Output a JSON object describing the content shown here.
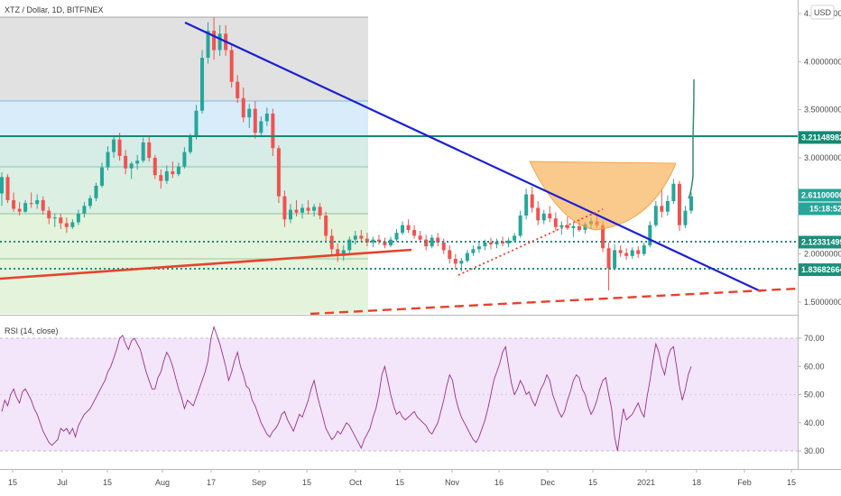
{
  "header": {
    "symbol_title": "XTZ / Dollar, 1D, BITFINEX",
    "currency_button": "USD"
  },
  "rsi_panel": {
    "title": "RSI (14, close)"
  },
  "colors": {
    "trend_blue": "#1a1fd6",
    "support_red": "#e8412c",
    "level_teal": "#138a72",
    "level_dotted": "#1c8f7a",
    "rsi_line": "#9b2f8c",
    "rsi_band": "#f3e5fb",
    "bowl_orange": "#f7a540",
    "candle_up": "#26a69a",
    "candle_down": "#ef5350",
    "fib_top": "#dcdcdc",
    "fib_blue": "#d8ecfa",
    "fib_teal": "#d9efe9",
    "fib_green": "#e4f4dc"
  },
  "chart_data": [
    {
      "type": "candlestick",
      "title": "XTZ / Dollar, 1D, BITFINEX",
      "x_ticks": [
        "15",
        "Jul",
        "15",
        "Aug",
        "17",
        "Sep",
        "15",
        "Oct",
        "15",
        "Nov",
        "16",
        "Dec",
        "15",
        "2021",
        "18",
        "Feb",
        "15"
      ],
      "y_ticks": [
        "1.50000000",
        "2.00000000",
        "2.50000000",
        "3.00000000",
        "3.50000000",
        "4.00000000",
        "4.50000000"
      ],
      "ylim": [
        1.4,
        4.55
      ],
      "price_labels": [
        {
          "value": 3.21148982,
          "text": "3.21148982",
          "color": "#138a72"
        },
        {
          "value": 2.611,
          "text": "2.61100000",
          "color": "#26a69a"
        },
        {
          "value": 2.12331499,
          "text": "2.12331499",
          "color": "#1c8f7a"
        },
        {
          "value": 1.83682664,
          "text": "1.83682664",
          "color": "#1c8f7a"
        }
      ],
      "countdown_label": "15:18:52",
      "horizontal_levels": [
        3.21148982,
        2.12331499,
        1.83682664
      ],
      "fib_levels": [
        4.44,
        3.57,
        3.21,
        2.89,
        2.39,
        2.0
      ],
      "trendlines": [
        {
          "name": "descending resistance",
          "from": [
            0.31,
            4.38
          ],
          "to": [
            9.13,
            1.6
          ]
        },
        {
          "name": "support",
          "from": [
            0,
            1.76
          ],
          "to": [
            4.6,
            2.05
          ]
        },
        {
          "name": "dashed support",
          "from": [
            3.73,
            1.39
          ],
          "to": [
            9.5,
            1.63
          ]
        }
      ],
      "projection": "curved upward projection from about 2.6 to about 3.85",
      "candles": [
        {
          "o": 2.63,
          "h": 2.85,
          "l": 2.5,
          "c": 2.8
        },
        {
          "o": 2.8,
          "h": 2.83,
          "l": 2.53,
          "c": 2.56
        },
        {
          "o": 2.56,
          "h": 2.64,
          "l": 2.44,
          "c": 2.47
        },
        {
          "o": 2.47,
          "h": 2.54,
          "l": 2.4,
          "c": 2.44
        },
        {
          "o": 2.44,
          "h": 2.56,
          "l": 2.43,
          "c": 2.53
        },
        {
          "o": 2.53,
          "h": 2.64,
          "l": 2.48,
          "c": 2.52
        },
        {
          "o": 2.52,
          "h": 2.62,
          "l": 2.47,
          "c": 2.56
        },
        {
          "o": 2.56,
          "h": 2.6,
          "l": 2.41,
          "c": 2.45
        },
        {
          "o": 2.45,
          "h": 2.49,
          "l": 2.31,
          "c": 2.37
        },
        {
          "o": 2.37,
          "h": 2.42,
          "l": 2.28,
          "c": 2.38
        },
        {
          "o": 2.38,
          "h": 2.42,
          "l": 2.26,
          "c": 2.32
        },
        {
          "o": 2.32,
          "h": 2.38,
          "l": 2.22,
          "c": 2.28
        },
        {
          "o": 2.28,
          "h": 2.36,
          "l": 2.26,
          "c": 2.33
        },
        {
          "o": 2.33,
          "h": 2.46,
          "l": 2.3,
          "c": 2.42
        },
        {
          "o": 2.42,
          "h": 2.54,
          "l": 2.38,
          "c": 2.5
        },
        {
          "o": 2.5,
          "h": 2.61,
          "l": 2.47,
          "c": 2.58
        },
        {
          "o": 2.58,
          "h": 2.74,
          "l": 2.55,
          "c": 2.71
        },
        {
          "o": 2.71,
          "h": 2.95,
          "l": 2.69,
          "c": 2.9
        },
        {
          "o": 2.9,
          "h": 3.12,
          "l": 2.87,
          "c": 3.06
        },
        {
          "o": 3.06,
          "h": 3.23,
          "l": 3.0,
          "c": 3.19
        },
        {
          "o": 3.19,
          "h": 3.26,
          "l": 2.97,
          "c": 3.02
        },
        {
          "o": 3.02,
          "h": 3.08,
          "l": 2.83,
          "c": 2.89
        },
        {
          "o": 2.89,
          "h": 2.96,
          "l": 2.78,
          "c": 2.94
        },
        {
          "o": 2.94,
          "h": 3.03,
          "l": 2.88,
          "c": 2.97
        },
        {
          "o": 2.97,
          "h": 3.21,
          "l": 2.95,
          "c": 3.16
        },
        {
          "o": 3.16,
          "h": 3.22,
          "l": 2.96,
          "c": 3.0
        },
        {
          "o": 3.0,
          "h": 3.03,
          "l": 2.78,
          "c": 2.82
        },
        {
          "o": 2.82,
          "h": 2.88,
          "l": 2.68,
          "c": 2.76
        },
        {
          "o": 2.76,
          "h": 2.92,
          "l": 2.73,
          "c": 2.86
        },
        {
          "o": 2.86,
          "h": 2.96,
          "l": 2.79,
          "c": 2.83
        },
        {
          "o": 2.83,
          "h": 2.95,
          "l": 2.81,
          "c": 2.91
        },
        {
          "o": 2.91,
          "h": 3.11,
          "l": 2.89,
          "c": 3.06
        },
        {
          "o": 3.06,
          "h": 3.25,
          "l": 3.04,
          "c": 3.22
        },
        {
          "o": 3.22,
          "h": 3.55,
          "l": 3.19,
          "c": 3.49
        },
        {
          "o": 3.49,
          "h": 4.12,
          "l": 3.46,
          "c": 4.04
        },
        {
          "o": 4.04,
          "h": 4.41,
          "l": 3.98,
          "c": 4.32
        },
        {
          "o": 4.32,
          "h": 4.46,
          "l": 4.02,
          "c": 4.12
        },
        {
          "o": 4.12,
          "h": 4.38,
          "l": 4.06,
          "c": 4.29
        },
        {
          "o": 4.29,
          "h": 4.38,
          "l": 4.06,
          "c": 4.12
        },
        {
          "o": 4.12,
          "h": 4.17,
          "l": 3.73,
          "c": 3.79
        },
        {
          "o": 3.79,
          "h": 3.86,
          "l": 3.57,
          "c": 3.62
        },
        {
          "o": 3.62,
          "h": 3.73,
          "l": 3.37,
          "c": 3.42
        },
        {
          "o": 3.42,
          "h": 3.56,
          "l": 3.31,
          "c": 3.51
        },
        {
          "o": 3.51,
          "h": 3.59,
          "l": 3.2,
          "c": 3.26
        },
        {
          "o": 3.26,
          "h": 3.43,
          "l": 3.23,
          "c": 3.38
        },
        {
          "o": 3.38,
          "h": 3.52,
          "l": 3.33,
          "c": 3.46
        },
        {
          "o": 3.46,
          "h": 3.51,
          "l": 3.02,
          "c": 3.1
        },
        {
          "o": 3.1,
          "h": 3.13,
          "l": 2.53,
          "c": 2.6
        },
        {
          "o": 2.6,
          "h": 2.66,
          "l": 2.28,
          "c": 2.36
        },
        {
          "o": 2.36,
          "h": 2.52,
          "l": 2.32,
          "c": 2.46
        },
        {
          "o": 2.46,
          "h": 2.56,
          "l": 2.39,
          "c": 2.43
        },
        {
          "o": 2.43,
          "h": 2.52,
          "l": 2.37,
          "c": 2.48
        },
        {
          "o": 2.48,
          "h": 2.56,
          "l": 2.41,
          "c": 2.45
        },
        {
          "o": 2.45,
          "h": 2.52,
          "l": 2.39,
          "c": 2.49
        },
        {
          "o": 2.49,
          "h": 2.53,
          "l": 2.36,
          "c": 2.4
        },
        {
          "o": 2.4,
          "h": 2.44,
          "l": 2.13,
          "c": 2.19
        },
        {
          "o": 2.19,
          "h": 2.26,
          "l": 1.98,
          "c": 2.05
        },
        {
          "o": 2.05,
          "h": 2.11,
          "l": 1.92,
          "c": 1.98
        },
        {
          "o": 1.98,
          "h": 2.09,
          "l": 1.93,
          "c": 2.04
        },
        {
          "o": 2.04,
          "h": 2.18,
          "l": 2.01,
          "c": 2.15
        },
        {
          "o": 2.15,
          "h": 2.24,
          "l": 2.1,
          "c": 2.19
        },
        {
          "o": 2.19,
          "h": 2.25,
          "l": 2.12,
          "c": 2.16
        },
        {
          "o": 2.16,
          "h": 2.22,
          "l": 2.08,
          "c": 2.12
        },
        {
          "o": 2.12,
          "h": 2.18,
          "l": 2.07,
          "c": 2.15
        },
        {
          "o": 2.15,
          "h": 2.2,
          "l": 2.1,
          "c": 2.13
        },
        {
          "o": 2.13,
          "h": 2.17,
          "l": 2.06,
          "c": 2.09
        },
        {
          "o": 2.09,
          "h": 2.18,
          "l": 2.07,
          "c": 2.15
        },
        {
          "o": 2.15,
          "h": 2.26,
          "l": 2.13,
          "c": 2.22
        },
        {
          "o": 2.22,
          "h": 2.34,
          "l": 2.2,
          "c": 2.3
        },
        {
          "o": 2.3,
          "h": 2.36,
          "l": 2.22,
          "c": 2.25
        },
        {
          "o": 2.25,
          "h": 2.3,
          "l": 2.16,
          "c": 2.19
        },
        {
          "o": 2.19,
          "h": 2.24,
          "l": 2.12,
          "c": 2.15
        },
        {
          "o": 2.15,
          "h": 2.2,
          "l": 2.04,
          "c": 2.08
        },
        {
          "o": 2.08,
          "h": 2.2,
          "l": 2.06,
          "c": 2.17
        },
        {
          "o": 2.17,
          "h": 2.22,
          "l": 2.08,
          "c": 2.12
        },
        {
          "o": 2.12,
          "h": 2.16,
          "l": 2.0,
          "c": 2.04
        },
        {
          "o": 2.04,
          "h": 2.09,
          "l": 1.9,
          "c": 1.95
        },
        {
          "o": 1.95,
          "h": 2.0,
          "l": 1.84,
          "c": 1.9
        },
        {
          "o": 1.9,
          "h": 1.96,
          "l": 1.82,
          "c": 1.93
        },
        {
          "o": 1.93,
          "h": 2.04,
          "l": 1.91,
          "c": 2.01
        },
        {
          "o": 2.01,
          "h": 2.09,
          "l": 1.98,
          "c": 2.05
        },
        {
          "o": 2.05,
          "h": 2.12,
          "l": 2.01,
          "c": 2.08
        },
        {
          "o": 2.08,
          "h": 2.15,
          "l": 2.04,
          "c": 2.12
        },
        {
          "o": 2.12,
          "h": 2.17,
          "l": 2.05,
          "c": 2.1
        },
        {
          "o": 2.1,
          "h": 2.16,
          "l": 2.06,
          "c": 2.13
        },
        {
          "o": 2.13,
          "h": 2.18,
          "l": 2.08,
          "c": 2.11
        },
        {
          "o": 2.11,
          "h": 2.17,
          "l": 2.07,
          "c": 2.14
        },
        {
          "o": 2.14,
          "h": 2.22,
          "l": 2.12,
          "c": 2.19
        },
        {
          "o": 2.19,
          "h": 2.45,
          "l": 2.17,
          "c": 2.4
        },
        {
          "o": 2.4,
          "h": 2.68,
          "l": 2.36,
          "c": 2.62
        },
        {
          "o": 2.62,
          "h": 2.7,
          "l": 2.43,
          "c": 2.48
        },
        {
          "o": 2.48,
          "h": 2.55,
          "l": 2.3,
          "c": 2.35
        },
        {
          "o": 2.35,
          "h": 2.46,
          "l": 2.31,
          "c": 2.42
        },
        {
          "o": 2.42,
          "h": 2.5,
          "l": 2.33,
          "c": 2.37
        },
        {
          "o": 2.37,
          "h": 2.43,
          "l": 2.24,
          "c": 2.28
        },
        {
          "o": 2.28,
          "h": 2.34,
          "l": 2.2,
          "c": 2.3
        },
        {
          "o": 2.3,
          "h": 2.39,
          "l": 2.25,
          "c": 2.27
        },
        {
          "o": 2.27,
          "h": 2.32,
          "l": 2.18,
          "c": 2.29
        },
        {
          "o": 2.29,
          "h": 2.35,
          "l": 2.23,
          "c": 2.25
        },
        {
          "o": 2.25,
          "h": 2.33,
          "l": 2.21,
          "c": 2.31
        },
        {
          "o": 2.31,
          "h": 2.38,
          "l": 2.26,
          "c": 2.34
        },
        {
          "o": 2.34,
          "h": 2.4,
          "l": 2.27,
          "c": 2.3
        },
        {
          "o": 2.3,
          "h": 2.34,
          "l": 2.02,
          "c": 2.06
        },
        {
          "o": 2.06,
          "h": 2.12,
          "l": 1.62,
          "c": 1.85
        },
        {
          "o": 1.85,
          "h": 2.1,
          "l": 1.83,
          "c": 2.04
        },
        {
          "o": 2.04,
          "h": 2.09,
          "l": 1.97,
          "c": 2.01
        },
        {
          "o": 2.01,
          "h": 2.06,
          "l": 1.94,
          "c": 1.98
        },
        {
          "o": 1.98,
          "h": 2.07,
          "l": 1.95,
          "c": 2.04
        },
        {
          "o": 2.04,
          "h": 2.08,
          "l": 1.96,
          "c": 2.0
        },
        {
          "o": 2.0,
          "h": 2.12,
          "l": 1.98,
          "c": 2.09
        },
        {
          "o": 2.09,
          "h": 2.34,
          "l": 2.07,
          "c": 2.3
        },
        {
          "o": 2.3,
          "h": 2.55,
          "l": 2.28,
          "c": 2.5
        },
        {
          "o": 2.5,
          "h": 2.68,
          "l": 2.38,
          "c": 2.44
        },
        {
          "o": 2.44,
          "h": 2.61,
          "l": 2.4,
          "c": 2.55
        },
        {
          "o": 2.55,
          "h": 2.78,
          "l": 2.52,
          "c": 2.73
        },
        {
          "o": 2.73,
          "h": 2.76,
          "l": 2.24,
          "c": 2.3
        },
        {
          "o": 2.3,
          "h": 2.5,
          "l": 2.27,
          "c": 2.45
        },
        {
          "o": 2.45,
          "h": 2.64,
          "l": 2.42,
          "c": 2.6
        }
      ]
    },
    {
      "type": "line",
      "title": "RSI (14, close)",
      "y_ticks": [
        "30.00",
        "40.00",
        "50.00",
        "60.00",
        "70.00"
      ],
      "ylim": [
        26,
        75
      ],
      "band": [
        30,
        70
      ],
      "series": [
        {
          "values": [
            44,
            48,
            46,
            50,
            52,
            49,
            47,
            51,
            52,
            50,
            48,
            45,
            43,
            40,
            37,
            35,
            33,
            32,
            33,
            34,
            38,
            37,
            38,
            36,
            38,
            35,
            39,
            41,
            43,
            44,
            45,
            47,
            49,
            51,
            53,
            55,
            58,
            60,
            63,
            66,
            70,
            71,
            68,
            66,
            69,
            70,
            68,
            66,
            62,
            58,
            55,
            52,
            52,
            56,
            58,
            62,
            65,
            63,
            60,
            56,
            52,
            49,
            45,
            48,
            47,
            46,
            49,
            52,
            55,
            58,
            62,
            70,
            74,
            71,
            68,
            64,
            60,
            55,
            58,
            62,
            65,
            60,
            57,
            53,
            52,
            48,
            46,
            43,
            40,
            38,
            36,
            35,
            37,
            38,
            40,
            43,
            44,
            41,
            39,
            37,
            40,
            43,
            42,
            45,
            48,
            52,
            55,
            50,
            46,
            42,
            38,
            36,
            34,
            35,
            37,
            36,
            38,
            40,
            39,
            37,
            35,
            33,
            31,
            34,
            36,
            38,
            42,
            45,
            50,
            57,
            60,
            55,
            50,
            46,
            43,
            44,
            42,
            41,
            42,
            43,
            44,
            42,
            41,
            40,
            39,
            37,
            36,
            38,
            40,
            44,
            48,
            53,
            57,
            55,
            49,
            45,
            42,
            40,
            38,
            36,
            34,
            33,
            35,
            38,
            41,
            45,
            50,
            55,
            58,
            61,
            65,
            67,
            60,
            54,
            50,
            52,
            55,
            53,
            50,
            51,
            48,
            46,
            49,
            52,
            54,
            57,
            55,
            50,
            47,
            44,
            42,
            44,
            48,
            51,
            55,
            57,
            56,
            52,
            50,
            46,
            43,
            45,
            48,
            52,
            55,
            56,
            50,
            45,
            35,
            30,
            38,
            45,
            41,
            42,
            43,
            45,
            47,
            44,
            42,
            49,
            55,
            62,
            68,
            65,
            60,
            57,
            63,
            66,
            67,
            60,
            53,
            48,
            52,
            57,
            60
          ]
        }
      ]
    }
  ]
}
